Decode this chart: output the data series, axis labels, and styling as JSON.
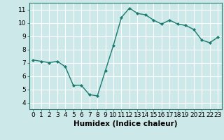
{
  "x": [
    0,
    1,
    2,
    3,
    4,
    5,
    6,
    7,
    8,
    9,
    10,
    11,
    12,
    13,
    14,
    15,
    16,
    17,
    18,
    19,
    20,
    21,
    22,
    23
  ],
  "y": [
    7.2,
    7.1,
    7.0,
    7.1,
    6.7,
    5.3,
    5.3,
    4.6,
    4.5,
    6.4,
    8.3,
    10.4,
    11.1,
    10.7,
    10.6,
    10.2,
    9.9,
    10.2,
    9.9,
    9.8,
    9.5,
    8.7,
    8.5,
    8.9
  ],
  "line_color": "#1a7a6e",
  "marker": "D",
  "marker_size": 2.0,
  "bg_color": "#cce8e8",
  "grid_color": "#ffffff",
  "xlabel": "Humidex (Indice chaleur)",
  "xlim": [
    -0.5,
    23.5
  ],
  "ylim": [
    3.5,
    11.5
  ],
  "yticks": [
    4,
    5,
    6,
    7,
    8,
    9,
    10,
    11
  ],
  "xticks": [
    0,
    1,
    2,
    3,
    4,
    5,
    6,
    7,
    8,
    9,
    10,
    11,
    12,
    13,
    14,
    15,
    16,
    17,
    18,
    19,
    20,
    21,
    22,
    23
  ],
  "xlabel_fontsize": 7.5,
  "tick_fontsize": 6.5,
  "line_width": 1.0
}
